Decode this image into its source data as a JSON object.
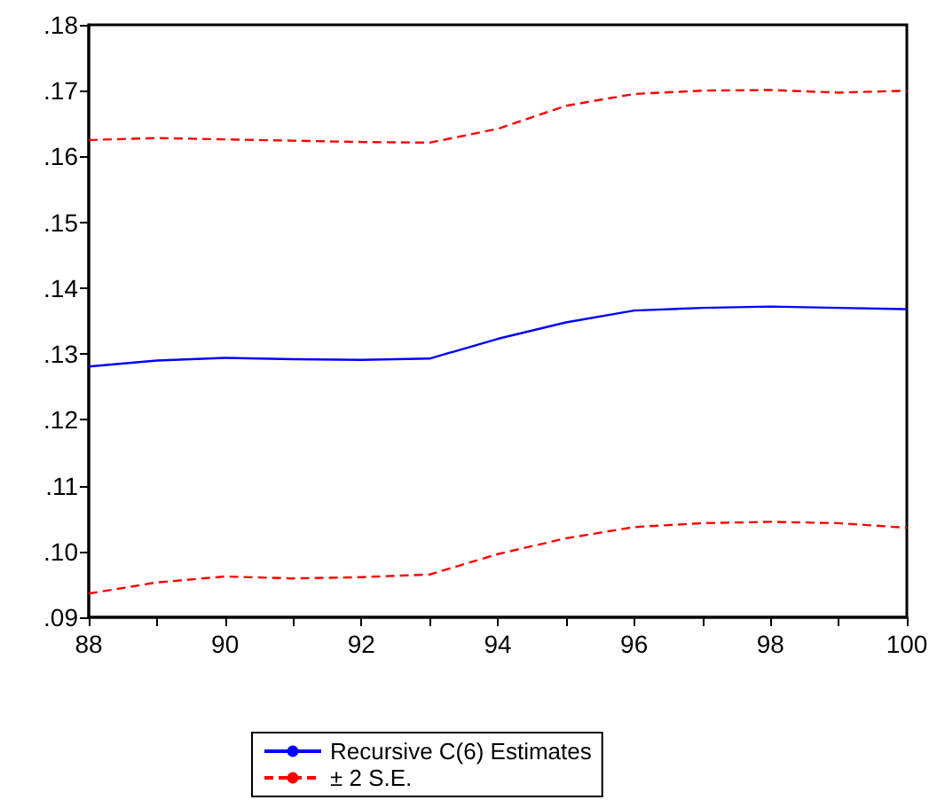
{
  "chart_data": {
    "type": "line",
    "x": [
      88,
      89,
      90,
      91,
      92,
      93,
      94,
      95,
      96,
      97,
      98,
      99,
      100
    ],
    "series": [
      {
        "name": "Recursive C(6) Estimates",
        "color": "#0000ff",
        "line_style": "solid",
        "values": [
          0.1281,
          0.129,
          0.1294,
          0.1292,
          0.1291,
          0.1293,
          0.1323,
          0.1348,
          0.1366,
          0.137,
          0.1372,
          0.137,
          0.1368
        ]
      },
      {
        "name": "± 2 S.E.",
        "color": "#ff0000",
        "line_style": "dashed",
        "values": [
          0.1625,
          0.1628,
          0.1626,
          0.1624,
          0.1622,
          0.1621,
          0.1642,
          0.1677,
          0.1695,
          0.17,
          0.1701,
          0.1697,
          0.17
        ]
      },
      {
        "color": "#ff0000",
        "line_style": "dashed",
        "values": [
          0.0936,
          0.0953,
          0.0962,
          0.0959,
          0.0961,
          0.0965,
          0.0996,
          0.102,
          0.1037,
          0.1043,
          0.1045,
          0.1043,
          0.1036
        ]
      }
    ],
    "xlim": [
      88,
      100
    ],
    "xticks": [
      88,
      {
        "value": 89,
        "label": null
      },
      90,
      {
        "value": 91,
        "label": null
      },
      92,
      {
        "value": 93,
        "label": null
      },
      94,
      {
        "value": 95,
        "label": null
      },
      96,
      {
        "value": 97,
        "label": null
      },
      98,
      {
        "value": 99,
        "label": null
      },
      100
    ],
    "ylim": [
      0.09,
      0.18
    ],
    "yticks": [
      {
        "value": 0.09,
        "label": ".09"
      },
      {
        "value": 0.1,
        "label": ".10"
      },
      {
        "value": 0.11,
        "label": ".11"
      },
      {
        "value": 0.12,
        "label": ".12"
      },
      {
        "value": 0.13,
        "label": ".13"
      },
      {
        "value": 0.14,
        "label": ".14"
      },
      {
        "value": 0.15,
        "label": ".15"
      },
      {
        "value": 0.16,
        "label": ".16"
      },
      {
        "value": 0.17,
        "label": ".17"
      },
      {
        "value": 0.18,
        "label": ".18"
      }
    ],
    "grid": false,
    "legend": "bottom",
    "marker": "none"
  }
}
